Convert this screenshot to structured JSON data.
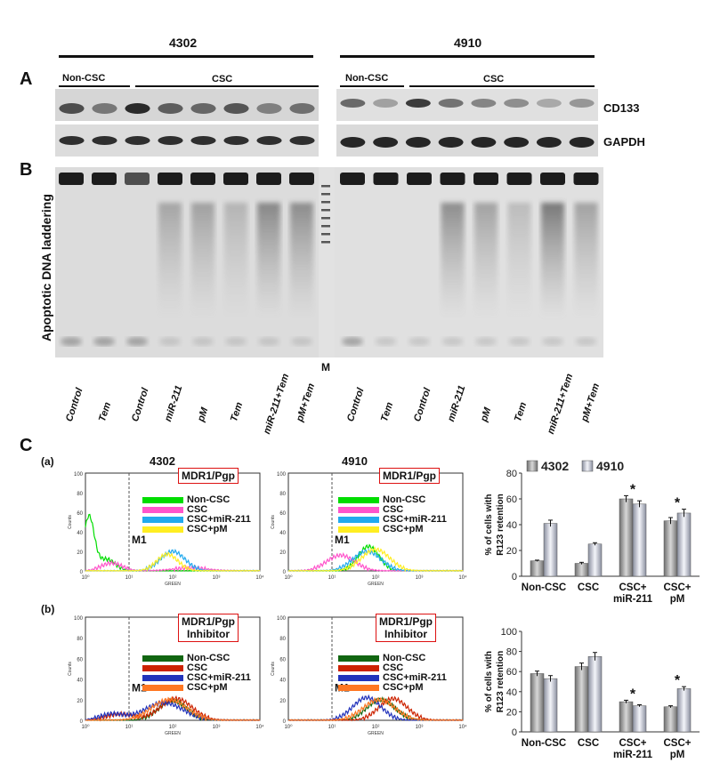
{
  "figure": {
    "header_left": "4302",
    "header_right": "4910",
    "panel_a_letter": "A",
    "panel_b_letter": "B",
    "panel_c_letter": "C",
    "noncsc_label": "Non-CSC",
    "csc_label": "CSC",
    "blot_label_cd133": "CD133",
    "blot_label_gapdh": "GAPDH",
    "panel_b_ylabel": "Apoptotic DNA laddering",
    "marker_label": "M",
    "lanes_left": [
      "Control",
      "Tem",
      "Control",
      "miR-211",
      "pM",
      "Tem",
      "miR-211+Tem",
      "pM+Tem"
    ],
    "lanes_right": [
      "Control",
      "Tem",
      "Control",
      "miR-211",
      "pM",
      "Tem",
      "miR-211+Tem",
      "pM+Tem"
    ]
  },
  "flow": {
    "row_a_label": "(a)",
    "row_b_label": "(b)",
    "col_left_title": "4302",
    "col_right_title": "4910",
    "box_a": "MDR1/Pgp",
    "box_b_line1": "MDR1/Pgp",
    "box_b_line2": "Inhibitor",
    "gate_label": "M1",
    "y_axis_label": "Counts",
    "x_axis_label": "GREEN",
    "x_ticks": [
      "10⁰",
      "10¹",
      "10²",
      "10³",
      "10⁴"
    ],
    "y_ticks": [
      "0",
      "20",
      "40",
      "60",
      "80",
      "100"
    ],
    "legend": [
      "Non-CSC",
      "CSC",
      "CSC+miR-211",
      "CSC+pM"
    ],
    "colors_a": [
      "#00dd00",
      "#ff55cc",
      "#22aaee",
      "#ffee22"
    ],
    "colors_b": [
      "#116611",
      "#cc2200",
      "#2233bb",
      "#ff7722"
    ]
  },
  "chart_data": [
    {
      "type": "bar",
      "categories": [
        "Non-CSC",
        "CSC",
        "CSC+\nmiR-211",
        "CSC+\npM"
      ],
      "ylabel": "% of cells with R123 retention",
      "ylabel_line1": "% of cells with",
      "ylabel_line2": "R123 retention",
      "ylim": [
        0,
        80
      ],
      "yticks": [
        "0",
        "20",
        "40",
        "60",
        "80"
      ],
      "legend_placement": "top",
      "series": [
        {
          "name": "4302",
          "values": [
            12,
            10,
            60,
            43
          ],
          "errors": [
            0.5,
            0.8,
            2.5,
            2.5
          ],
          "color": "#9a9a9a"
        },
        {
          "name": "4910",
          "values": [
            41,
            25,
            56,
            49
          ],
          "errors": [
            2.5,
            1.0,
            2.5,
            3.0
          ],
          "color": "#c8cbd8"
        }
      ],
      "significance": [
        "",
        "",
        "*",
        "*"
      ]
    },
    {
      "type": "bar",
      "categories": [
        "Non-CSC",
        "CSC",
        "CSC+\nmiR-211",
        "CSC+\npM"
      ],
      "ylabel": "% of cells with R123 retention",
      "ylabel_line1": "% of cells with",
      "ylabel_line2": "R123 retention",
      "ylim": [
        0,
        100
      ],
      "yticks": [
        "0",
        "20",
        "40",
        "60",
        "80",
        "100"
      ],
      "series": [
        {
          "name": "4302",
          "values": [
            58,
            65,
            30,
            25
          ],
          "errors": [
            2.5,
            3.5,
            1.5,
            1.0
          ],
          "color": "#9a9a9a"
        },
        {
          "name": "4910",
          "values": [
            53,
            75,
            26,
            43
          ],
          "errors": [
            3.0,
            4.0,
            1.0,
            2.0
          ],
          "color": "#c8cbd8"
        }
      ],
      "significance": [
        "",
        "",
        "*",
        "*"
      ]
    }
  ]
}
